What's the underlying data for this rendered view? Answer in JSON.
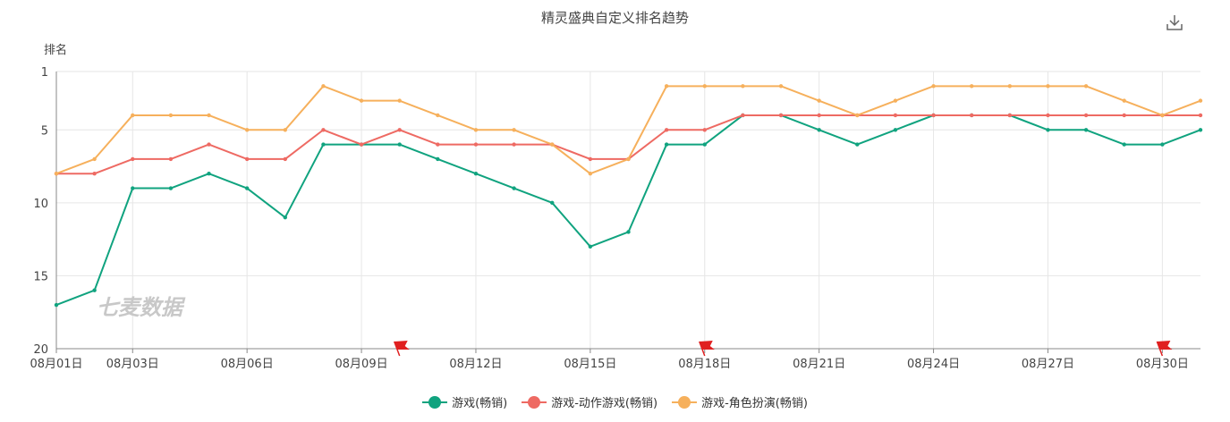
{
  "chart_data": {
    "type": "line",
    "title": "精灵盛典自定义排名趋势",
    "ylabel": "排名",
    "y_inverted": true,
    "ylim": [
      1,
      20
    ],
    "y_ticks": [
      1,
      5,
      10,
      15,
      20
    ],
    "categories": [
      "08月01日",
      "08月02日",
      "08月03日",
      "08月04日",
      "08月05日",
      "08月06日",
      "08月07日",
      "08月08日",
      "08月09日",
      "08月10日",
      "08月11日",
      "08月12日",
      "08月13日",
      "08月14日",
      "08月15日",
      "08月16日",
      "08月17日",
      "08月18日",
      "08月19日",
      "08月20日",
      "08月21日",
      "08月22日",
      "08月23日",
      "08月24日",
      "08月25日",
      "08月26日",
      "08月27日",
      "08月28日",
      "08月29日",
      "08月30日",
      "08月31日"
    ],
    "x_tick_labels": [
      "08月01日",
      "08月03日",
      "08月06日",
      "08月09日",
      "08月12日",
      "08月15日",
      "08月18日",
      "08月21日",
      "08月24日",
      "08月27日",
      "08月30日"
    ],
    "series": [
      {
        "name": "游戏(畅销)",
        "color": "#10a37f",
        "values": [
          17,
          16,
          9,
          9,
          8,
          9,
          11,
          6,
          6,
          6,
          7,
          8,
          9,
          10,
          13,
          12,
          6,
          6,
          4,
          4,
          5,
          6,
          5,
          4,
          4,
          4,
          5,
          5,
          6,
          6,
          5
        ]
      },
      {
        "name": "游戏-动作游戏(畅销)",
        "color": "#ee6a63",
        "values": [
          8,
          8,
          7,
          7,
          6,
          7,
          7,
          5,
          6,
          5,
          6,
          6,
          6,
          6,
          7,
          7,
          5,
          5,
          4,
          4,
          4,
          4,
          4,
          4,
          4,
          4,
          4,
          4,
          4,
          4,
          4
        ]
      },
      {
        "name": "游戏-角色扮演(畅销)",
        "color": "#f6b05c",
        "values": [
          8,
          7,
          4,
          4,
          4,
          5,
          5,
          2,
          3,
          3,
          4,
          5,
          5,
          6,
          8,
          7,
          2,
          2,
          2,
          2,
          3,
          4,
          3,
          2,
          2,
          2,
          2,
          2,
          3,
          4,
          3
        ]
      }
    ],
    "markers": [
      {
        "type": "flag",
        "category": "08月10日",
        "color": "#e02020"
      },
      {
        "type": "flag",
        "category": "08月18日",
        "color": "#e02020"
      },
      {
        "type": "flag",
        "category": "08月30日",
        "color": "#e02020"
      }
    ],
    "watermark": "七麦数据",
    "grid": true,
    "legend_position": "bottom-center"
  },
  "toolbar": {
    "download_icon": "download-icon"
  }
}
